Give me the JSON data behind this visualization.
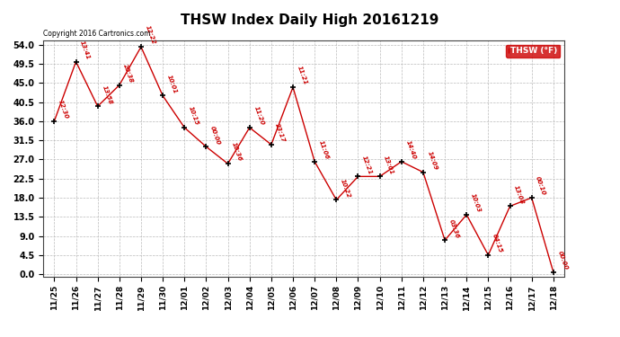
{
  "title": "THSW Index Daily High 20161219",
  "copyright": "Copyright 2016 Cartronics.com",
  "legend_label": "THSW (°F)",
  "x_labels": [
    "11/25",
    "11/26",
    "11/27",
    "11/28",
    "11/29",
    "11/30",
    "12/01",
    "12/02",
    "12/03",
    "12/04",
    "12/05",
    "12/06",
    "12/07",
    "12/08",
    "12/09",
    "12/10",
    "12/11",
    "12/12",
    "12/13",
    "12/14",
    "12/15",
    "12/16",
    "12/17",
    "12/18"
  ],
  "y_values": [
    36.0,
    50.0,
    39.5,
    44.5,
    53.5,
    42.0,
    34.5,
    30.0,
    26.0,
    34.5,
    30.5,
    44.0,
    26.5,
    17.5,
    23.0,
    23.0,
    26.5,
    24.0,
    8.0,
    14.0,
    4.5,
    16.0,
    18.0,
    0.5
  ],
  "time_labels": [
    "12:30",
    "13:41",
    "13:58",
    "20:38",
    "12:22",
    "10:01",
    "10:15",
    "00:00",
    "10:36",
    "11:20",
    "23:17",
    "11:21",
    "11:06",
    "10:22",
    "12:21",
    "13:01",
    "14:40",
    "14:09",
    "03:36",
    "10:03",
    "04:15",
    "13:08",
    "00:10",
    "00:00"
  ],
  "y_ticks": [
    0.0,
    4.5,
    9.0,
    13.5,
    18.0,
    22.5,
    27.0,
    31.5,
    36.0,
    40.5,
    45.0,
    49.5,
    54.0
  ],
  "y_min": 0.0,
  "y_max": 54.0,
  "line_color": "#cc0000",
  "marker_color": "#000000",
  "label_color": "#cc0000",
  "bg_color": "#ffffff",
  "grid_color": "#bbbbbb",
  "title_fontsize": 11,
  "legend_box_color": "#cc0000",
  "legend_text_color": "#ffffff"
}
